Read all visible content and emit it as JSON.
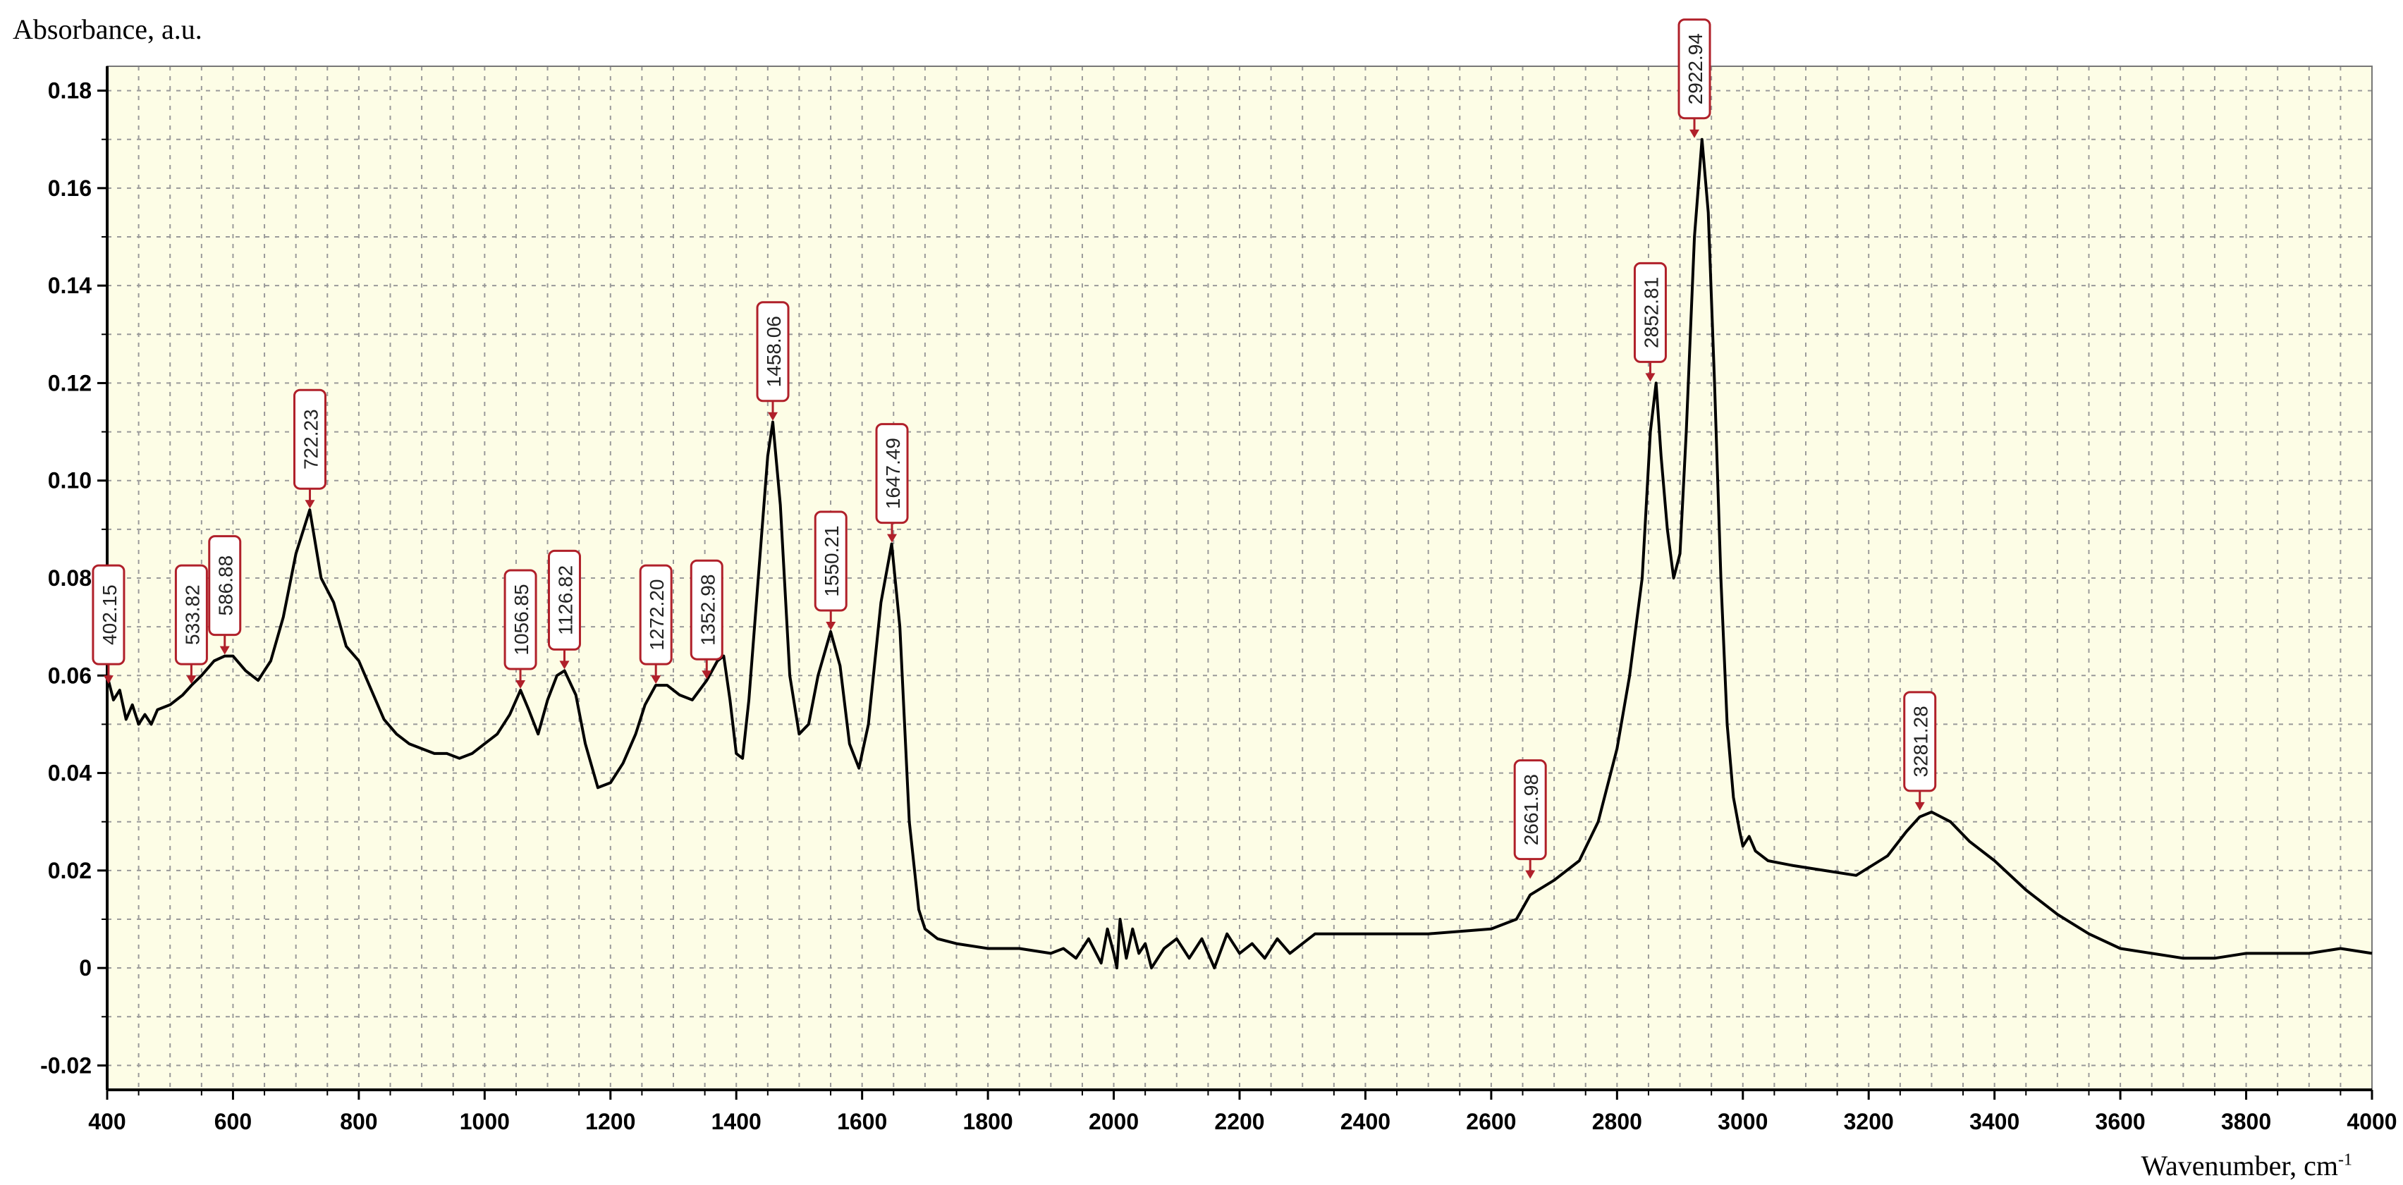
{
  "chart_data": {
    "type": "line",
    "ylabel": "Absorbance, a.u.",
    "xlabel": "Wavenumber, cm",
    "xlabel_superscript": "-1",
    "xlim": [
      400,
      4000
    ],
    "ylim": [
      -0.025,
      0.185
    ],
    "x_ticks": [
      400,
      600,
      800,
      1000,
      1200,
      1400,
      1600,
      1800,
      2000,
      2200,
      2400,
      2600,
      2800,
      3000,
      3200,
      3400,
      3600,
      3800,
      4000
    ],
    "x_tick_labels": [
      "400",
      "600",
      "800",
      "1000",
      "1200",
      "1400",
      "1600",
      "1800",
      "2000",
      "2200",
      "2400",
      "2600",
      "2800",
      "3000",
      "3200",
      "3400",
      "3600",
      "3800",
      "4000"
    ],
    "y_ticks": [
      -0.02,
      0,
      0.02,
      0.04,
      0.06,
      0.08,
      0.1,
      0.12,
      0.14,
      0.16,
      0.18
    ],
    "y_tick_labels": [
      "-0.02",
      "0",
      "0.02",
      "0.04",
      "0.06",
      "0.08",
      "0.10",
      "0.12",
      "0.14",
      "0.16",
      "0.18"
    ],
    "grid": true,
    "colors": {
      "plot_bg": "#fdfde6",
      "grid": "#9a9a9a",
      "line": "#000000",
      "marker": "#b0202a"
    },
    "series": [
      {
        "x": [
          400,
          410,
          420,
          430,
          440,
          450,
          460,
          470,
          480,
          500,
          520,
          534,
          550,
          570,
          587,
          600,
          620,
          640,
          660,
          680,
          700,
          722,
          740,
          760,
          780,
          800,
          820,
          840,
          860,
          880,
          900,
          920,
          940,
          960,
          980,
          1000,
          1020,
          1040,
          1057,
          1070,
          1085,
          1100,
          1115,
          1127,
          1145,
          1160,
          1180,
          1200,
          1220,
          1240,
          1255,
          1272,
          1290,
          1310,
          1330,
          1353,
          1370,
          1380,
          1390,
          1400,
          1410,
          1420,
          1435,
          1450,
          1458,
          1470,
          1485,
          1500,
          1515,
          1530,
          1550,
          1565,
          1580,
          1595,
          1610,
          1630,
          1647,
          1660,
          1675,
          1690,
          1700,
          1720,
          1750,
          1800,
          1850,
          1900,
          1920,
          1940,
          1960,
          1980,
          1990,
          2000,
          2005,
          2010,
          2020,
          2030,
          2040,
          2050,
          2060,
          2080,
          2100,
          2120,
          2140,
          2160,
          2180,
          2200,
          2220,
          2240,
          2260,
          2280,
          2300,
          2320,
          2400,
          2500,
          2600,
          2640,
          2662,
          2700,
          2740,
          2770,
          2800,
          2820,
          2840,
          2853,
          2862,
          2870,
          2880,
          2890,
          2900,
          2910,
          2923,
          2935,
          2945,
          2955,
          2965,
          2975,
          2985,
          2995,
          3000,
          3010,
          3020,
          3040,
          3080,
          3130,
          3180,
          3230,
          3260,
          3281,
          3300,
          3330,
          3360,
          3400,
          3450,
          3500,
          3550,
          3600,
          3650,
          3700,
          3750,
          3800,
          3850,
          3900,
          3950,
          4000
        ],
        "y": [
          0.06,
          0.055,
          0.057,
          0.051,
          0.054,
          0.05,
          0.052,
          0.05,
          0.053,
          0.054,
          0.056,
          0.058,
          0.06,
          0.063,
          0.064,
          0.064,
          0.061,
          0.059,
          0.063,
          0.072,
          0.085,
          0.094,
          0.08,
          0.075,
          0.066,
          0.063,
          0.057,
          0.051,
          0.048,
          0.046,
          0.045,
          0.044,
          0.044,
          0.043,
          0.044,
          0.046,
          0.048,
          0.052,
          0.057,
          0.053,
          0.048,
          0.055,
          0.06,
          0.061,
          0.056,
          0.046,
          0.037,
          0.038,
          0.042,
          0.048,
          0.054,
          0.058,
          0.058,
          0.056,
          0.055,
          0.059,
          0.063,
          0.064,
          0.055,
          0.044,
          0.043,
          0.055,
          0.08,
          0.105,
          0.112,
          0.095,
          0.06,
          0.048,
          0.05,
          0.06,
          0.069,
          0.062,
          0.046,
          0.041,
          0.05,
          0.075,
          0.087,
          0.07,
          0.03,
          0.012,
          0.008,
          0.006,
          0.005,
          0.004,
          0.004,
          0.003,
          0.004,
          0.002,
          0.006,
          0.001,
          0.008,
          0.003,
          0.0,
          0.01,
          0.002,
          0.008,
          0.003,
          0.005,
          0.0,
          0.004,
          0.006,
          0.002,
          0.006,
          0.0,
          0.007,
          0.003,
          0.005,
          0.002,
          0.006,
          0.003,
          0.005,
          0.007,
          0.007,
          0.007,
          0.008,
          0.01,
          0.015,
          0.018,
          0.022,
          0.03,
          0.045,
          0.06,
          0.08,
          0.11,
          0.12,
          0.105,
          0.09,
          0.08,
          0.085,
          0.11,
          0.15,
          0.17,
          0.155,
          0.12,
          0.08,
          0.05,
          0.035,
          0.028,
          0.025,
          0.027,
          0.024,
          0.022,
          0.021,
          0.02,
          0.019,
          0.023,
          0.028,
          0.031,
          0.032,
          0.03,
          0.026,
          0.022,
          0.016,
          0.011,
          0.007,
          0.004,
          0.003,
          0.002,
          0.002,
          0.003,
          0.003,
          0.003,
          0.004,
          0.003
        ]
      }
    ],
    "annotations": [
      {
        "label": "402.15",
        "x": 402.15,
        "y": 0.058
      },
      {
        "label": "533.82",
        "x": 533.82,
        "y": 0.058
      },
      {
        "label": "586.88",
        "x": 586.88,
        "y": 0.064
      },
      {
        "label": "722.23",
        "x": 722.23,
        "y": 0.094
      },
      {
        "label": "1056.85",
        "x": 1056.85,
        "y": 0.057
      },
      {
        "label": "1126.82",
        "x": 1126.82,
        "y": 0.061
      },
      {
        "label": "1272.20",
        "x": 1272.2,
        "y": 0.058
      },
      {
        "label": "1352.98",
        "x": 1352.98,
        "y": 0.059
      },
      {
        "label": "1458.06",
        "x": 1458.06,
        "y": 0.112
      },
      {
        "label": "1550.21",
        "x": 1550.21,
        "y": 0.069
      },
      {
        "label": "1647.49",
        "x": 1647.49,
        "y": 0.087
      },
      {
        "label": "2661.98",
        "x": 2661.98,
        "y": 0.018
      },
      {
        "label": "2852.81",
        "x": 2852.81,
        "y": 0.12
      },
      {
        "label": "2922.94",
        "x": 2922.94,
        "y": 0.17
      },
      {
        "label": "3281.28",
        "x": 3281.28,
        "y": 0.032
      }
    ]
  }
}
